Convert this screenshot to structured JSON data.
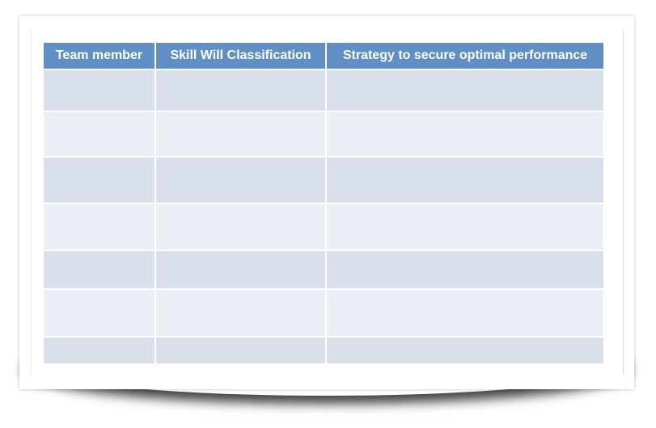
{
  "table": {
    "headers": [
      "Team member",
      "Skill Will Classification",
      "Strategy to secure optimal performance"
    ],
    "rows": [
      [
        "",
        "",
        ""
      ],
      [
        "",
        "",
        ""
      ],
      [
        "",
        "",
        ""
      ],
      [
        "",
        "",
        ""
      ],
      [
        "",
        "",
        ""
      ],
      [
        "",
        "",
        ""
      ],
      [
        "",
        "",
        ""
      ]
    ]
  },
  "colors": {
    "header": "#5f8fc6",
    "row_dark": "#d9e0ec",
    "row_light": "#ecf0f6"
  }
}
